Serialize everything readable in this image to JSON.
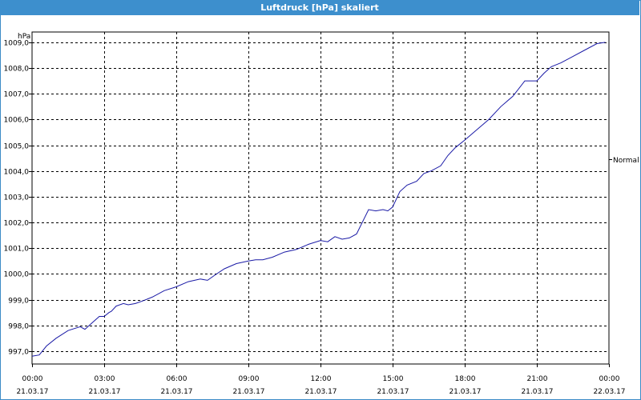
{
  "window": {
    "title": "Luftdruck [hPa] skaliert"
  },
  "chart_data": {
    "type": "line",
    "title": "Luftdruck [hPa] skaliert",
    "ylabel": "hPa",
    "ylim": [
      996.5,
      1009.4
    ],
    "yticks": [
      "1009,0",
      "1008,0",
      "1007,0",
      "1006,0",
      "1005,0",
      "1004,0",
      "1003,0",
      "1002,0",
      "1001,0",
      "1000,0",
      "999,0",
      "998,0",
      "997,0"
    ],
    "ytick_values": [
      1009,
      1008,
      1007,
      1006,
      1005,
      1004,
      1003,
      1002,
      1001,
      1000,
      999,
      998,
      997
    ],
    "xlim_hours": [
      0,
      24
    ],
    "xticks": [
      {
        "time": "00:00",
        "date": "21.03.17"
      },
      {
        "time": "03:00",
        "date": "21.03.17"
      },
      {
        "time": "06:00",
        "date": "21.03.17"
      },
      {
        "time": "09:00",
        "date": "21.03.17"
      },
      {
        "time": "12:00",
        "date": "21.03.17"
      },
      {
        "time": "15:00",
        "date": "21.03.17"
      },
      {
        "time": "18:00",
        "date": "21.03.17"
      },
      {
        "time": "21:00",
        "date": "21.03.17"
      },
      {
        "time": "00:00",
        "date": "22.03.17"
      }
    ],
    "grid": true,
    "legend": "right",
    "series": [
      {
        "name": "Normal",
        "color": "#1a1aa6",
        "x_hours": [
          0,
          0.3,
          0.6,
          1.0,
          1.5,
          2.0,
          2.2,
          2.5,
          2.8,
          3.0,
          3.2,
          3.3,
          3.5,
          3.8,
          4.0,
          4.3,
          4.6,
          5.0,
          5.5,
          6.0,
          6.5,
          7.0,
          7.3,
          7.6,
          8.0,
          8.5,
          9.0,
          9.3,
          9.6,
          10.0,
          10.5,
          11.0,
          11.5,
          12.0,
          12.3,
          12.6,
          12.9,
          13.2,
          13.5,
          14.0,
          14.3,
          14.6,
          14.8,
          15.0,
          15.3,
          15.6,
          16.0,
          16.3,
          16.6,
          17.0,
          17.3,
          17.6,
          18.0,
          18.5,
          19.0,
          19.5,
          20.0,
          20.5,
          21.0,
          21.3,
          21.6,
          22.0,
          22.5,
          23.0,
          23.5,
          23.85
        ],
        "values": [
          996.8,
          996.85,
          997.2,
          997.5,
          997.8,
          997.95,
          997.85,
          998.1,
          998.35,
          998.35,
          998.5,
          998.55,
          998.75,
          998.85,
          998.8,
          998.85,
          998.95,
          999.1,
          999.35,
          999.5,
          999.7,
          999.8,
          999.75,
          999.95,
          1000.2,
          1000.4,
          1000.5,
          1000.55,
          1000.55,
          1000.65,
          1000.85,
          1000.95,
          1001.15,
          1001.3,
          1001.25,
          1001.45,
          1001.35,
          1001.4,
          1001.55,
          1002.5,
          1002.45,
          1002.5,
          1002.45,
          1002.6,
          1003.2,
          1003.45,
          1003.6,
          1003.9,
          1004.0,
          1004.2,
          1004.6,
          1004.9,
          1005.2,
          1005.6,
          1006.0,
          1006.5,
          1006.9,
          1007.5,
          1007.5,
          1007.8,
          1008.05,
          1008.2,
          1008.45,
          1008.7,
          1008.95,
          1009.0
        ]
      }
    ]
  }
}
